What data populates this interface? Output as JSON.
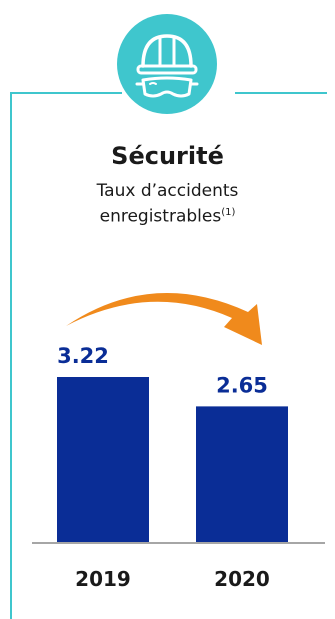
{
  "header": {
    "title": "Sécurité",
    "subtitle_line1": "Taux d’accidents",
    "subtitle_line2": "enregistrables",
    "footnote_marker": "(1)"
  },
  "icon": {
    "name": "safety-helmet-goggles-icon"
  },
  "colors": {
    "frame": "#3fc6cd",
    "badge": "#3fc6cd",
    "bar": "#0a2d96",
    "value_label": "#0a2d96",
    "arrow": "#f08a1c",
    "baseline": "#a6a6a6"
  },
  "chart_data": {
    "type": "bar",
    "categories": [
      "2019",
      "2020"
    ],
    "values": [
      3.22,
      2.65
    ],
    "value_labels": [
      "3.22",
      "2.65"
    ],
    "ylim": [
      0,
      3.22
    ],
    "grid": false,
    "legend": "none",
    "annotation": "arrow from 2019 bar to 2020 bar indicating decrease"
  }
}
